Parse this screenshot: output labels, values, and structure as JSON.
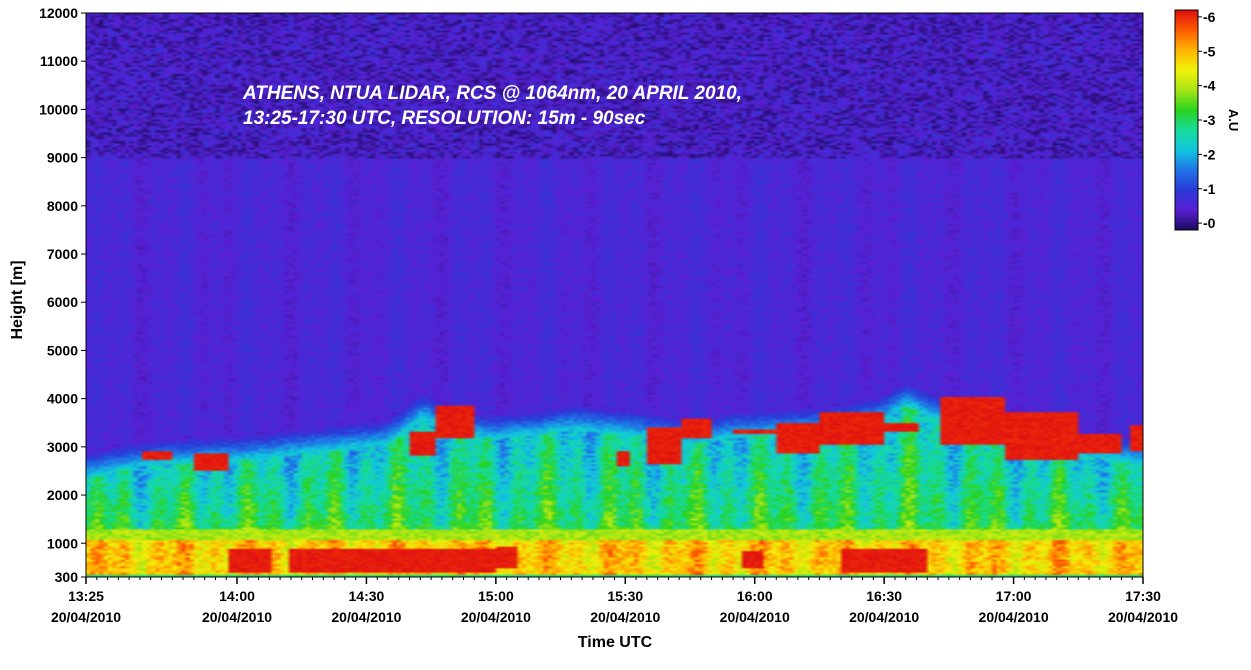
{
  "chart_data": {
    "type": "heatmap",
    "title_lines": [
      "ATHENS, NTUA LIDAR, RCS @ 1064nm, 20 APRIL 2010,",
      "13:25-17:30 UTC, RESOLUTION: 15m - 90sec"
    ],
    "xlabel": "Time UTC",
    "ylabel": "Height [m]",
    "colorbar_label": "A.U",
    "x_ticks": [
      {
        "time": "13:25",
        "date": "20/04/2010",
        "minutes": 805
      },
      {
        "time": "14:00",
        "date": "20/04/2010",
        "minutes": 840
      },
      {
        "time": "14:30",
        "date": "20/04/2010",
        "minutes": 870
      },
      {
        "time": "15:00",
        "date": "20/04/2010",
        "minutes": 900
      },
      {
        "time": "15:30",
        "date": "20/04/2010",
        "minutes": 930
      },
      {
        "time": "16:00",
        "date": "20/04/2010",
        "minutes": 960
      },
      {
        "time": "16:30",
        "date": "20/04/2010",
        "minutes": 990
      },
      {
        "time": "17:00",
        "date": "20/04/2010",
        "minutes": 1020
      },
      {
        "time": "17:30",
        "date": "20/04/2010",
        "minutes": 1050
      }
    ],
    "xlim_minutes": [
      805,
      1050
    ],
    "y_ticks": [
      300,
      1000,
      2000,
      3000,
      4000,
      5000,
      6000,
      7000,
      8000,
      9000,
      10000,
      11000,
      12000
    ],
    "ylim": [
      300,
      12000
    ],
    "color_ticks": [
      "0",
      "1",
      "2",
      "3",
      "4",
      "5",
      "6"
    ],
    "clim": [
      -0.2,
      6.2
    ],
    "colormap": [
      "#1a0a5e",
      "#5a1fd4",
      "#2a3ad8",
      "#1f74e6",
      "#12c6e0",
      "#16dc9a",
      "#2ad21e",
      "#a8e614",
      "#f2f20a",
      "#ffb400",
      "#ff5a00",
      "#e01010"
    ],
    "boundary_layer_top_m": [
      [
        805,
        2600
      ],
      [
        815,
        2800
      ],
      [
        825,
        2900
      ],
      [
        840,
        2950
      ],
      [
        855,
        3100
      ],
      [
        865,
        3200
      ],
      [
        875,
        3300
      ],
      [
        883,
        3850
      ],
      [
        890,
        3500
      ],
      [
        900,
        3400
      ],
      [
        910,
        3500
      ],
      [
        918,
        3600
      ],
      [
        930,
        3500
      ],
      [
        945,
        3300
      ],
      [
        955,
        3450
      ],
      [
        965,
        3500
      ],
      [
        980,
        3600
      ],
      [
        990,
        3800
      ],
      [
        995,
        4100
      ],
      [
        1005,
        3700
      ],
      [
        1015,
        3300
      ],
      [
        1025,
        3100
      ],
      [
        1040,
        3000
      ],
      [
        1050,
        2900
      ]
    ],
    "aerosol_layers_red": [
      [
        818,
        825,
        2750,
        2900
      ],
      [
        830,
        838,
        2500,
        2850
      ],
      [
        880,
        886,
        2800,
        3300
      ],
      [
        886,
        895,
        3200,
        3850
      ],
      [
        928,
        931,
        2600,
        2900
      ],
      [
        935,
        943,
        2650,
        3400
      ],
      [
        943,
        950,
        3200,
        3600
      ],
      [
        955,
        965,
        3250,
        3350
      ],
      [
        965,
        975,
        2850,
        3500
      ],
      [
        975,
        990,
        3050,
        3700
      ],
      [
        990,
        998,
        3300,
        3500
      ],
      [
        1003,
        1018,
        3050,
        4050
      ],
      [
        1018,
        1035,
        2750,
        3700
      ],
      [
        1035,
        1045,
        2850,
        3250
      ],
      [
        1047,
        1050,
        2900,
        3450
      ]
    ],
    "surface_layer_red": [
      [
        838,
        848,
        380,
        900
      ],
      [
        852,
        900,
        400,
        880
      ],
      [
        900,
        905,
        500,
        950
      ],
      [
        957,
        962,
        500,
        850
      ],
      [
        980,
        1000,
        400,
        900
      ]
    ]
  }
}
